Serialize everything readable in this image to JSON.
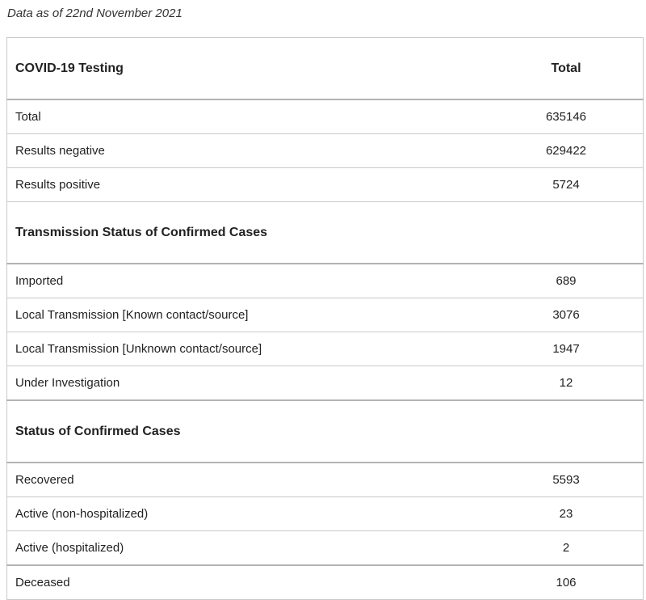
{
  "caption": "Data as of 22nd November 2021",
  "table": {
    "header": {
      "label": "COVID-19 Testing",
      "value": "Total"
    },
    "testing_rows": [
      {
        "label": "Total",
        "value": "635146"
      },
      {
        "label": "Results negative",
        "value": "629422"
      },
      {
        "label": "Results positive",
        "value": "5724"
      }
    ],
    "transmission_header": "Transmission Status of Confirmed Cases",
    "transmission_rows": [
      {
        "label": "Imported",
        "value": "689"
      },
      {
        "label": "Local Transmission [Known contact/source]",
        "value": "3076"
      },
      {
        "label": "Local Transmission [Unknown contact/source]",
        "value": "1947"
      },
      {
        "label": "Under Investigation",
        "value": "12"
      }
    ],
    "status_header": "Status of Confirmed Cases",
    "status_rows": [
      {
        "label": "Recovered",
        "value": "5593"
      },
      {
        "label": "Active (non-hospitalized)",
        "value": "23"
      },
      {
        "label": "Active (hospitalized)",
        "value": "2"
      }
    ],
    "deceased_row": {
      "label": "Deceased",
      "value": "106"
    }
  }
}
